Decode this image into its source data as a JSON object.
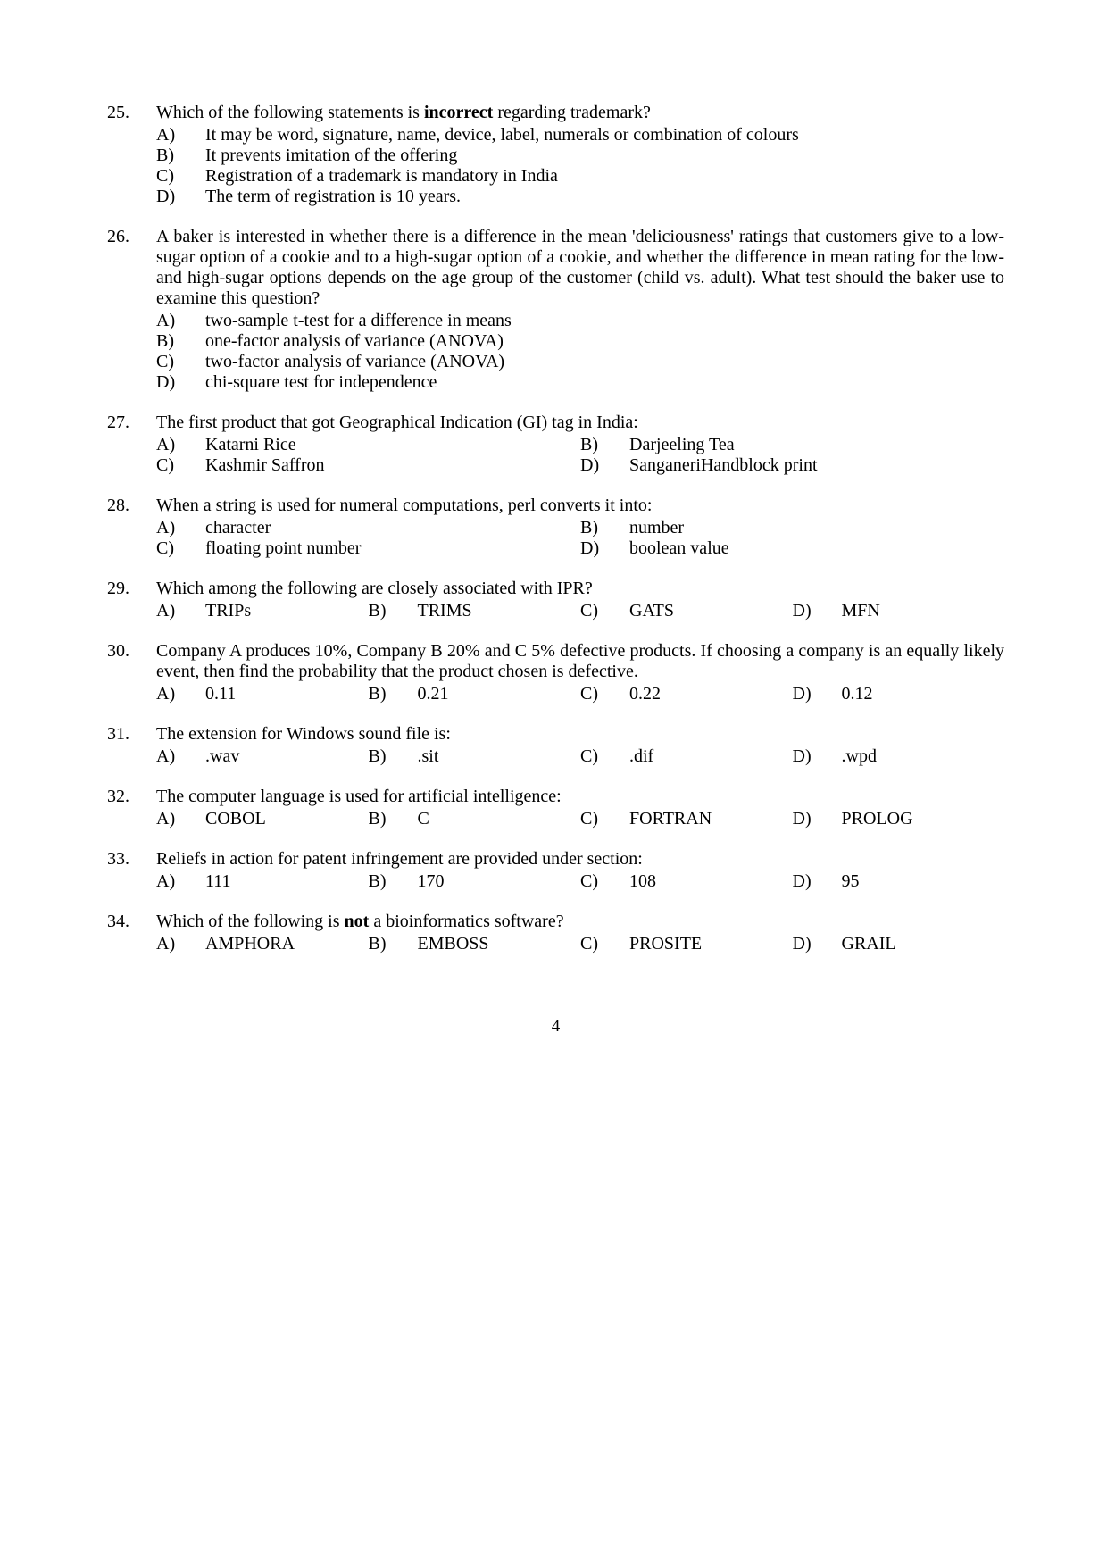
{
  "page_number": "4",
  "questions": [
    {
      "num": "25.",
      "layout": "vertical",
      "text_segments": [
        {
          "t": "Which of the following statements is ",
          "bold": false
        },
        {
          "t": "incorrect",
          "bold": true
        },
        {
          "t": " regarding trademark?",
          "bold": false
        }
      ],
      "options": [
        {
          "l": "A)",
          "t": "It may be word, signature, name, device, label, numerals or combination of colours"
        },
        {
          "l": "B)",
          "t": "It prevents imitation of the offering"
        },
        {
          "l": "C)",
          "t": "Registration of a trademark is mandatory in India"
        },
        {
          "l": "D)",
          "t": "The term of registration is 10 years."
        }
      ]
    },
    {
      "num": "26.",
      "layout": "vertical",
      "justify": true,
      "text": "A baker is interested in whether there is a difference in the mean 'deliciousness' ratings that customers give to a low-sugar option of a cookie and to a high-sugar option of a cookie, and whether the difference in mean rating for the low- and high-sugar options depends on the age group of the customer (child vs. adult). What test should the baker use to examine this question?",
      "options": [
        {
          "l": "A)",
          "t": "two-sample t-test for a difference in means"
        },
        {
          "l": "B)",
          "t": "one-factor analysis of variance (ANOVA)"
        },
        {
          "l": "C)",
          "t": "two-factor analysis of variance (ANOVA)"
        },
        {
          "l": "D)",
          "t": "chi-square test for independence"
        }
      ]
    },
    {
      "num": "27.",
      "layout": "2col",
      "text": "The first product that got Geographical Indication (GI) tag in India:",
      "options": [
        {
          "l": "A)",
          "t": "Katarni Rice"
        },
        {
          "l": "B)",
          "t": "Darjeeling Tea"
        },
        {
          "l": "C)",
          "t": "Kashmir Saffron"
        },
        {
          "l": "D)",
          "t": "SanganeriHandblock print"
        }
      ]
    },
    {
      "num": "28.",
      "layout": "2col",
      "text": "When a string is used for numeral computations, perl converts it into:",
      "options": [
        {
          "l": "A)",
          "t": "character"
        },
        {
          "l": "B)",
          "t": "number"
        },
        {
          "l": "C)",
          "t": "floating point number"
        },
        {
          "l": "D)",
          "t": "boolean value"
        }
      ]
    },
    {
      "num": "29.",
      "layout": "inline",
      "text": "Which among the following are closely associated with IPR?",
      "options": [
        {
          "l": "A)",
          "t": "TRIPs"
        },
        {
          "l": "B)",
          "t": "TRIMS"
        },
        {
          "l": "C)",
          "t": "GATS"
        },
        {
          "l": "D)",
          "t": "MFN"
        }
      ]
    },
    {
      "num": "30.",
      "layout": "inline",
      "justify": true,
      "text": "Company A produces 10%, Company B 20% and C 5% defective products. If choosing a company is an equally likely event, then find the probability that the product chosen is defective.",
      "options": [
        {
          "l": "A)",
          "t": "0.11"
        },
        {
          "l": "B)",
          "t": "0.21"
        },
        {
          "l": "C)",
          "t": "0.22"
        },
        {
          "l": "D)",
          "t": "0.12"
        }
      ]
    },
    {
      "num": "31.",
      "layout": "inline",
      "text": "The extension for Windows sound file is:",
      "options": [
        {
          "l": "A)",
          "t": ".wav"
        },
        {
          "l": "B)",
          "t": ".sit"
        },
        {
          "l": "C)",
          "t": ".dif"
        },
        {
          "l": "D)",
          "t": ".wpd"
        }
      ]
    },
    {
      "num": "32.",
      "layout": "inline",
      "text": "The computer language is used for artificial intelligence:",
      "options": [
        {
          "l": "A)",
          "t": "COBOL"
        },
        {
          "l": "B)",
          "t": "C"
        },
        {
          "l": "C)",
          "t": "FORTRAN"
        },
        {
          "l": "D)",
          "t": "PROLOG"
        }
      ]
    },
    {
      "num": "33.",
      "layout": "inline",
      "text": "Reliefs in action for patent infringement are provided under section:",
      "options": [
        {
          "l": "A)",
          "t": "111"
        },
        {
          "l": "B)",
          "t": "170"
        },
        {
          "l": "C)",
          "t": "108"
        },
        {
          "l": "D)",
          "t": "95"
        }
      ]
    },
    {
      "num": "34.",
      "layout": "inline",
      "text_segments": [
        {
          "t": "Which of the following is ",
          "bold": false
        },
        {
          "t": "not",
          "bold": true
        },
        {
          "t": " a bioinformatics software?",
          "bold": false
        }
      ],
      "options": [
        {
          "l": "A)",
          "t": "AMPHORA"
        },
        {
          "l": "B)",
          "t": "EMBOSS"
        },
        {
          "l": "C)",
          "t": "PROSITE"
        },
        {
          "l": "D)",
          "t": "GRAIL"
        }
      ]
    }
  ]
}
